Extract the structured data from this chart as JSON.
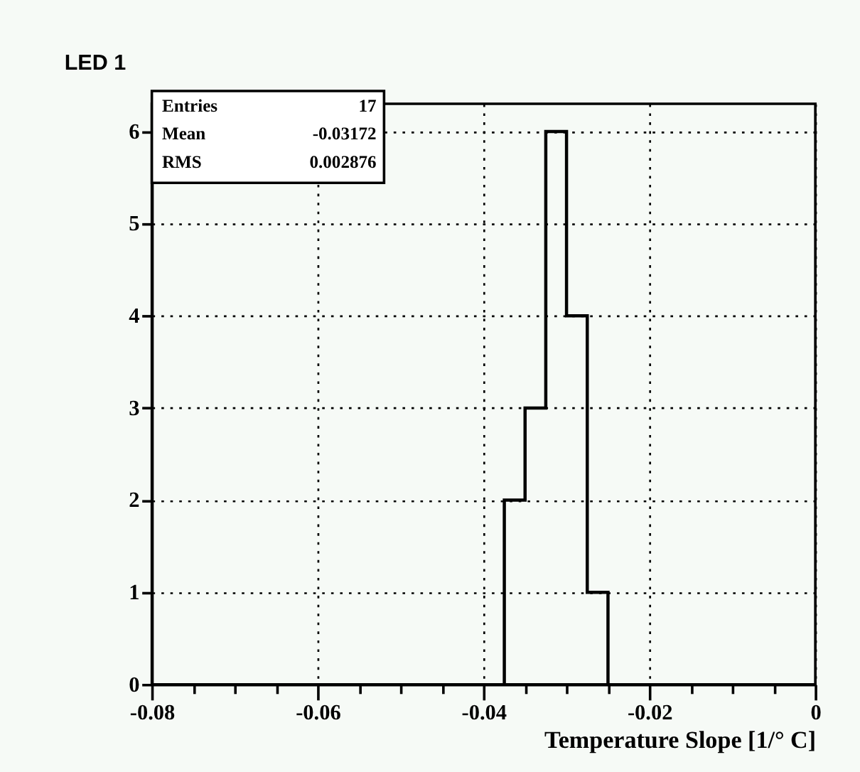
{
  "chart_data": {
    "type": "histogram",
    "title": "LED 1",
    "xlabel": "Temperature Slope [1/° C]",
    "bins": [
      -0.0375,
      -0.035,
      -0.0325,
      -0.03,
      -0.0275,
      -0.025
    ],
    "values": [
      2,
      3,
      6,
      4,
      1
    ],
    "color": "#000000",
    "xlim": [
      -0.08,
      0
    ],
    "ylim": [
      0,
      6.3
    ],
    "xticks": [
      -0.08,
      {
        "value": -0.075,
        "label": null
      },
      {
        "value": -0.07,
        "label": null
      },
      {
        "value": -0.065,
        "label": null
      },
      -0.06,
      {
        "value": -0.055,
        "label": null
      },
      {
        "value": -0.05,
        "label": null
      },
      {
        "value": -0.045,
        "label": null
      },
      -0.04,
      {
        "value": -0.035,
        "label": null
      },
      {
        "value": -0.03,
        "label": null
      },
      {
        "value": -0.025,
        "label": null
      },
      -0.02,
      {
        "value": -0.015,
        "label": null
      },
      {
        "value": -0.01,
        "label": null
      },
      {
        "value": -0.005,
        "label": null
      },
      0
    ],
    "yticks": [
      0,
      1,
      2,
      3,
      4,
      5,
      6
    ],
    "grid": true,
    "annotations": [
      "Entries 17",
      "Mean -0.03172",
      "RMS 0.002876"
    ]
  }
}
